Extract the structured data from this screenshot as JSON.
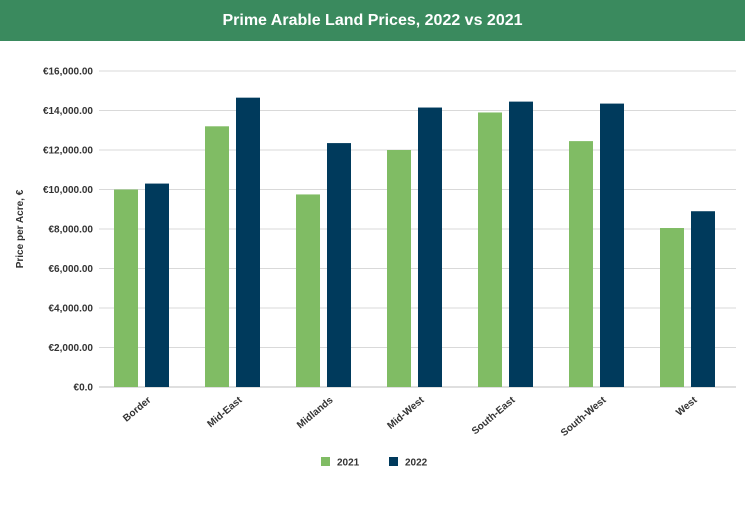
{
  "header": {
    "title": "Prime Arable Land Prices, 2022 vs 2021"
  },
  "colors": {
    "header_bg": "#3a8a5e",
    "series_2021": "#80bc64",
    "series_2022": "#003a5c",
    "grid": "#d9d9d9"
  },
  "chart_data": {
    "type": "bar",
    "title": "Prime Arable Land Prices, 2022 vs 2021",
    "xlabel": "",
    "ylabel": "Price per Acre, €",
    "ylim": [
      0,
      16000
    ],
    "yticks": [
      0,
      2000,
      4000,
      6000,
      8000,
      10000,
      12000,
      14000,
      16000
    ],
    "ytick_labels": [
      "€0.0",
      "€2,000.00",
      "€4,000.00",
      "€6,000.00",
      "€8,000.00",
      "€10,000.00",
      "€12,000.00",
      "€14,000.00",
      "€16,000.00"
    ],
    "categories": [
      "Border",
      "Mid-East",
      "Midlands",
      "Mid-West",
      "South-East",
      "South-West",
      "West"
    ],
    "series": [
      {
        "name": "2021",
        "color": "#80bc64",
        "values": [
          10000,
          13200,
          9750,
          12000,
          13900,
          12450,
          8050
        ]
      },
      {
        "name": "2022",
        "color": "#003a5c",
        "values": [
          10300,
          14650,
          12350,
          14150,
          14450,
          14350,
          8900
        ]
      }
    ],
    "legend": "bottom-center",
    "grid": true
  }
}
